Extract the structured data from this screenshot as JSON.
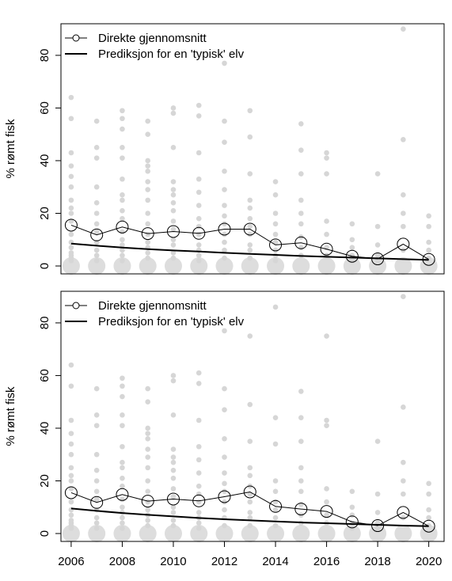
{
  "chart_data": [
    {
      "type": "line",
      "ylabel": "% rømt fisk",
      "xlabel": "",
      "xlim": [
        2005.6,
        2020.6
      ],
      "ylim": [
        -3,
        92
      ],
      "yticks": [
        0,
        20,
        40,
        60,
        80
      ],
      "xticks": [
        2006,
        2008,
        2010,
        2012,
        2014,
        2016,
        2018,
        2020
      ],
      "grid": false,
      "legend_position": "top-left",
      "series": [
        {
          "name": "Direkte gjennomsnitt",
          "style": "line-open-circles",
          "x": [
            2006,
            2007,
            2008,
            2009,
            2010,
            2011,
            2012,
            2013,
            2014,
            2015,
            2016,
            2017,
            2018,
            2019,
            2020
          ],
          "values": [
            15.5,
            11.8,
            14.8,
            12.3,
            13.1,
            12.4,
            14.0,
            14.0,
            8.0,
            8.8,
            6.4,
            3.7,
            2.7,
            8.3,
            2.5
          ]
        },
        {
          "name": "Prediksjon for en 'typisk' elv",
          "style": "line",
          "x": [
            2006,
            2007,
            2008,
            2009,
            2010,
            2011,
            2012,
            2013,
            2014,
            2015,
            2016,
            2017,
            2018,
            2019,
            2020
          ],
          "values": [
            8.5,
            7.7,
            7.0,
            6.4,
            5.9,
            5.5,
            5.0,
            4.6,
            4.2,
            3.8,
            3.5,
            3.2,
            2.9,
            2.6,
            2.3
          ]
        }
      ],
      "background_points": {
        "description_color": "#d9d9d9",
        "x": [
          2006,
          2006,
          2006,
          2006,
          2006,
          2006,
          2006,
          2006,
          2006,
          2006,
          2006,
          2006,
          2006,
          2006,
          2006,
          2006,
          2006,
          2007,
          2007,
          2007,
          2007,
          2007,
          2007,
          2007,
          2007,
          2007,
          2007,
          2007,
          2007,
          2008,
          2008,
          2008,
          2008,
          2008,
          2008,
          2008,
          2008,
          2008,
          2008,
          2008,
          2008,
          2008,
          2008,
          2008,
          2008,
          2009,
          2009,
          2009,
          2009,
          2009,
          2009,
          2009,
          2009,
          2009,
          2009,
          2009,
          2009,
          2009,
          2009,
          2009,
          2010,
          2010,
          2010,
          2010,
          2010,
          2010,
          2010,
          2010,
          2010,
          2010,
          2010,
          2010,
          2010,
          2010,
          2011,
          2011,
          2011,
          2011,
          2011,
          2011,
          2011,
          2011,
          2011,
          2011,
          2011,
          2011,
          2011,
          2012,
          2012,
          2012,
          2012,
          2012,
          2012,
          2012,
          2012,
          2012,
          2012,
          2012,
          2012,
          2013,
          2013,
          2013,
          2013,
          2013,
          2013,
          2013,
          2013,
          2013,
          2013,
          2013,
          2014,
          2014,
          2014,
          2014,
          2014,
          2014,
          2014,
          2014,
          2014,
          2015,
          2015,
          2015,
          2015,
          2015,
          2015,
          2015,
          2015,
          2015,
          2016,
          2016,
          2016,
          2016,
          2016,
          2016,
          2016,
          2017,
          2017,
          2017,
          2017,
          2017,
          2018,
          2018,
          2018,
          2018,
          2018,
          2019,
          2019,
          2019,
          2019,
          2019,
          2019,
          2020,
          2020,
          2020,
          2020,
          2020
        ],
        "values": [
          64,
          56,
          43,
          38,
          34,
          30,
          25,
          22,
          20,
          17,
          12,
          9,
          7,
          5,
          4,
          3,
          2,
          55,
          45,
          41,
          30,
          24,
          20,
          16,
          13,
          9,
          6,
          4,
          2,
          59,
          56,
          52,
          45,
          41,
          33,
          27,
          25,
          21,
          18,
          13,
          10,
          8,
          6,
          4,
          2,
          55,
          50,
          40,
          38,
          36,
          32,
          29,
          25,
          20,
          16,
          12,
          9,
          7,
          5,
          3,
          60,
          58,
          45,
          32,
          29,
          27,
          24,
          21,
          17,
          14,
          10,
          8,
          5,
          3,
          61,
          57,
          43,
          33,
          28,
          23,
          18,
          15,
          12,
          8,
          6,
          4,
          2,
          77,
          55,
          47,
          36,
          29,
          23,
          19,
          16,
          12,
          9,
          6,
          3,
          59,
          49,
          35,
          25,
          22,
          18,
          15,
          12,
          8,
          6,
          3,
          32,
          27,
          20,
          16,
          12,
          9,
          6,
          4,
          2,
          54,
          44,
          35,
          25,
          20,
          16,
          11,
          7,
          4,
          43,
          41,
          35,
          17,
          12,
          7,
          4,
          16,
          10,
          7,
          4,
          2,
          35,
          15,
          8,
          4,
          2,
          90,
          48,
          27,
          20,
          15,
          6,
          19,
          15,
          9,
          6,
          3
        ],
        "large_points_at_zero": [
          2006,
          2007,
          2008,
          2009,
          2010,
          2011,
          2012,
          2013,
          2014,
          2015,
          2016,
          2017,
          2018,
          2019,
          2020
        ]
      }
    },
    {
      "type": "line",
      "ylabel": "% rømt fisk",
      "xlabel": "",
      "xlim": [
        2005.6,
        2020.6
      ],
      "ylim": [
        -3,
        92
      ],
      "yticks": [
        0,
        20,
        40,
        60,
        80
      ],
      "xticks": [
        2006,
        2008,
        2010,
        2012,
        2014,
        2016,
        2018,
        2020
      ],
      "grid": false,
      "legend_position": "top-left",
      "series": [
        {
          "name": "Direkte gjennomsnitt",
          "style": "line-open-circles",
          "x": [
            2006,
            2007,
            2008,
            2009,
            2010,
            2011,
            2012,
            2013,
            2014,
            2015,
            2016,
            2017,
            2018,
            2019,
            2020
          ],
          "values": [
            15.5,
            11.8,
            14.8,
            12.3,
            13.1,
            12.4,
            14.0,
            15.8,
            10.3,
            9.3,
            8.4,
            4.4,
            3.0,
            8.0,
            2.8
          ]
        },
        {
          "name": "Prediksjon for en 'typisk' elv",
          "style": "line",
          "x": [
            2006,
            2007,
            2008,
            2009,
            2010,
            2011,
            2012,
            2013,
            2014,
            2015,
            2016,
            2017,
            2018,
            2019,
            2020
          ],
          "values": [
            9.5,
            8.6,
            7.8,
            7.1,
            6.5,
            5.9,
            5.4,
            5.0,
            4.6,
            4.2,
            3.9,
            3.6,
            3.3,
            3.0,
            2.8
          ]
        }
      ],
      "background_points": {
        "description_color": "#d9d9d9",
        "x": [
          2006,
          2006,
          2006,
          2006,
          2006,
          2006,
          2006,
          2006,
          2006,
          2006,
          2006,
          2006,
          2006,
          2006,
          2006,
          2006,
          2006,
          2007,
          2007,
          2007,
          2007,
          2007,
          2007,
          2007,
          2007,
          2007,
          2007,
          2007,
          2007,
          2008,
          2008,
          2008,
          2008,
          2008,
          2008,
          2008,
          2008,
          2008,
          2008,
          2008,
          2008,
          2008,
          2008,
          2008,
          2008,
          2009,
          2009,
          2009,
          2009,
          2009,
          2009,
          2009,
          2009,
          2009,
          2009,
          2009,
          2009,
          2009,
          2009,
          2009,
          2010,
          2010,
          2010,
          2010,
          2010,
          2010,
          2010,
          2010,
          2010,
          2010,
          2010,
          2010,
          2010,
          2010,
          2011,
          2011,
          2011,
          2011,
          2011,
          2011,
          2011,
          2011,
          2011,
          2011,
          2011,
          2011,
          2011,
          2012,
          2012,
          2012,
          2012,
          2012,
          2012,
          2012,
          2012,
          2012,
          2012,
          2012,
          2012,
          2013,
          2013,
          2013,
          2013,
          2013,
          2013,
          2013,
          2013,
          2013,
          2013,
          2013,
          2014,
          2014,
          2014,
          2014,
          2014,
          2014,
          2014,
          2014,
          2014,
          2015,
          2015,
          2015,
          2015,
          2015,
          2015,
          2015,
          2015,
          2015,
          2016,
          2016,
          2016,
          2016,
          2016,
          2016,
          2016,
          2017,
          2017,
          2017,
          2017,
          2017,
          2018,
          2018,
          2018,
          2018,
          2018,
          2019,
          2019,
          2019,
          2019,
          2019,
          2019,
          2020,
          2020,
          2020,
          2020,
          2020
        ],
        "values": [
          64,
          56,
          43,
          38,
          34,
          30,
          25,
          22,
          20,
          17,
          12,
          9,
          7,
          5,
          4,
          3,
          2,
          55,
          45,
          41,
          30,
          24,
          20,
          16,
          13,
          9,
          6,
          4,
          2,
          59,
          56,
          52,
          45,
          41,
          33,
          27,
          25,
          21,
          18,
          13,
          10,
          8,
          6,
          4,
          2,
          55,
          50,
          40,
          38,
          36,
          32,
          29,
          25,
          20,
          16,
          12,
          9,
          7,
          5,
          3,
          60,
          58,
          45,
          32,
          29,
          27,
          24,
          21,
          17,
          14,
          10,
          8,
          5,
          3,
          61,
          57,
          43,
          33,
          28,
          23,
          18,
          15,
          12,
          8,
          6,
          4,
          2,
          77,
          55,
          47,
          36,
          29,
          23,
          19,
          16,
          12,
          9,
          6,
          3,
          75,
          49,
          35,
          25,
          22,
          18,
          15,
          12,
          8,
          6,
          3,
          86,
          44,
          34,
          20,
          16,
          12,
          9,
          6,
          3,
          54,
          44,
          35,
          25,
          20,
          16,
          11,
          7,
          4,
          75,
          43,
          41,
          17,
          12,
          7,
          4,
          16,
          10,
          7,
          4,
          2,
          35,
          15,
          8,
          4,
          2,
          90,
          48,
          27,
          20,
          15,
          6,
          19,
          15,
          9,
          6,
          3
        ],
        "large_points_at_zero": [
          2006,
          2007,
          2008,
          2009,
          2010,
          2011,
          2012,
          2013,
          2014,
          2015,
          2016,
          2017,
          2018,
          2019,
          2020
        ]
      }
    }
  ]
}
